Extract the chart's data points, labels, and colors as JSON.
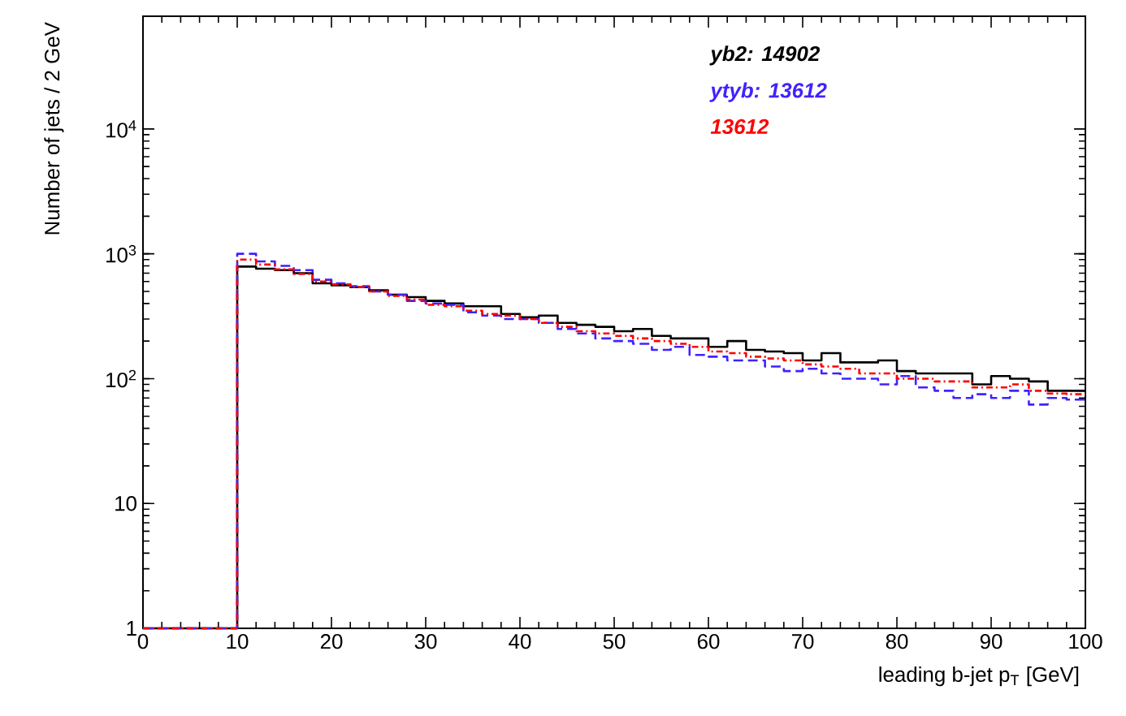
{
  "chart_data": {
    "type": "histogram",
    "xlabel": "leading b-jet p$_{T}$ [GeV]",
    "ylabel": "Number of jets / 2 GeV",
    "bins": [
      0,
      2,
      4,
      6,
      8,
      10,
      12,
      14,
      16,
      18,
      20,
      22,
      24,
      26,
      28,
      30,
      32,
      34,
      36,
      38,
      40,
      42,
      44,
      46,
      48,
      50,
      52,
      54,
      56,
      58,
      60,
      62,
      64,
      66,
      68,
      70,
      72,
      74,
      76,
      78,
      80,
      82,
      84,
      86,
      88,
      90,
      92,
      94,
      96,
      98,
      100
    ],
    "series": [
      {
        "name": "yb2: 14902",
        "color": "#000000",
        "line_style": "solid",
        "values": [
          1,
          1,
          1,
          1,
          1,
          790,
          760,
          740,
          700,
          580,
          560,
          540,
          510,
          470,
          450,
          420,
          400,
          380,
          380,
          330,
          310,
          320,
          280,
          270,
          260,
          240,
          250,
          220,
          210,
          210,
          180,
          200,
          170,
          165,
          160,
          140,
          160,
          135,
          135,
          140,
          115,
          110,
          110,
          110,
          90,
          105,
          100,
          95,
          80,
          80
        ]
      },
      {
        "name": "ytyb:   13612",
        "color": "#3f22ff",
        "line_style": "dashed",
        "values": [
          1,
          1,
          1,
          1,
          1,
          1000,
          870,
          800,
          740,
          620,
          580,
          550,
          500,
          470,
          420,
          400,
          390,
          340,
          320,
          300,
          300,
          280,
          250,
          230,
          210,
          200,
          190,
          170,
          180,
          155,
          150,
          140,
          140,
          125,
          115,
          120,
          110,
          100,
          100,
          90,
          105,
          85,
          80,
          70,
          75,
          70,
          80,
          62,
          70,
          68
        ]
      },
      {
        "name": "13612",
        "color": "#ff0000",
        "line_style": "dotted",
        "values": [
          1,
          1,
          1,
          1,
          1,
          900,
          820,
          750,
          690,
          600,
          570,
          540,
          500,
          460,
          430,
          390,
          380,
          350,
          330,
          320,
          300,
          280,
          260,
          240,
          230,
          220,
          210,
          200,
          190,
          180,
          165,
          160,
          150,
          145,
          140,
          130,
          125,
          120,
          110,
          110,
          100,
          100,
          95,
          95,
          85,
          85,
          90,
          80,
          76,
          75
        ]
      }
    ],
    "log": "y",
    "legend": "top right",
    "xlim": [
      0,
      100
    ],
    "xticks": [
      0,
      10,
      20,
      30,
      40,
      50,
      60,
      70,
      80,
      90,
      100
    ],
    "ylim": [
      1,
      80000
    ],
    "yticks": [
      1,
      10,
      {
        "value": 100,
        "label": "10$^{2}$"
      },
      {
        "value": 1000,
        "label": "10$^{3}$"
      },
      {
        "value": 10000,
        "label": "10$^{4}$"
      }
    ]
  }
}
